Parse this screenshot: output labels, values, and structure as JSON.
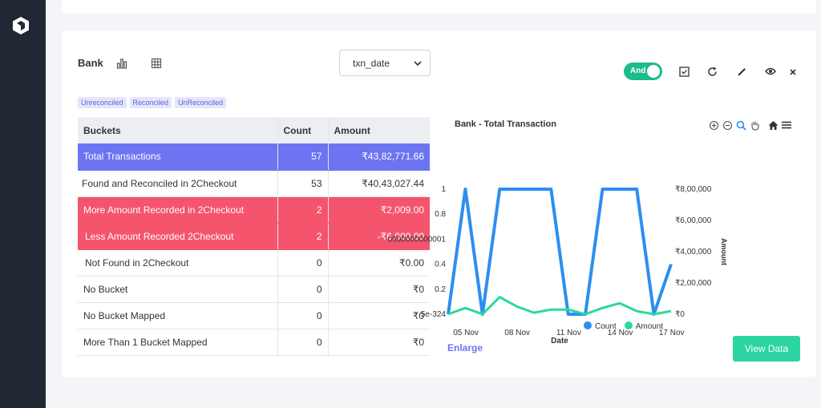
{
  "card": {
    "title": "Bank",
    "date_select": "txn_date",
    "toggle_label": "And",
    "tags": [
      "Unreconciled",
      "Reconciled",
      "UnReconciled"
    ]
  },
  "table": {
    "headers": [
      "Buckets",
      "Count",
      "Amount"
    ],
    "rows": [
      {
        "bucket": "Total Transactions",
        "count": "57",
        "amount": "₹43,82,771.66"
      },
      {
        "bucket": "Found and Reconciled in 2Checkout",
        "count": "53",
        "amount": "₹40,43,027.44"
      },
      {
        "bucket": "More Amount Recorded in 2Checkout",
        "count": "2",
        "amount": "₹2,009.00"
      },
      {
        "bucket": "Less Amount Recorded 2Checkout",
        "count": "2",
        "amount": "-₹6,000.00"
      },
      {
        "bucket": "Not Found in 2Checkout",
        "count": "0",
        "amount": "₹0.00"
      },
      {
        "bucket": "No Bucket",
        "count": "0",
        "amount": "₹0"
      },
      {
        "bucket": "No Bucket Mapped",
        "count": "0",
        "amount": "₹0"
      },
      {
        "bucket": "More Than 1 Bucket Mapped",
        "count": "0",
        "amount": "₹0"
      }
    ]
  },
  "chart_data": {
    "type": "line",
    "title": "Bank - Total Transaction",
    "xlabel": "Date",
    "ylabel_right": "Amount",
    "x_ticks": [
      "05 Nov",
      "08 Nov",
      "11 Nov",
      "14 Nov",
      "17 Nov"
    ],
    "y_left_ticks": [
      "5e-324",
      "0.2",
      "0.4",
      "0000000000001",
      "0.8",
      "1"
    ],
    "y_right_ticks": [
      "₹0",
      "₹2,00,000",
      "₹4,00,000",
      "₹6,00,000",
      "₹8,00,000"
    ],
    "ylim_left": [
      0,
      1
    ],
    "ylim_right": [
      0,
      800000
    ],
    "series": [
      {
        "name": "Count",
        "axis": "left",
        "color": "#2b8ff0",
        "values": [
          0,
          1,
          0,
          1,
          1,
          1,
          1,
          0,
          0,
          1,
          1,
          1,
          0,
          0.4
        ]
      },
      {
        "name": "Amount",
        "axis": "right",
        "color": "#2bd99b",
        "values": [
          0,
          40000,
          0,
          110000,
          50000,
          10000,
          30000,
          30000,
          0,
          40000,
          70000,
          20000,
          0,
          20000
        ]
      }
    ],
    "legend": "bottom"
  },
  "chart_labels": {
    "legend_count": "Count",
    "legend_amount": "Amount"
  },
  "actions": {
    "enlarge": "Enlarge",
    "view_data": "View Data"
  }
}
